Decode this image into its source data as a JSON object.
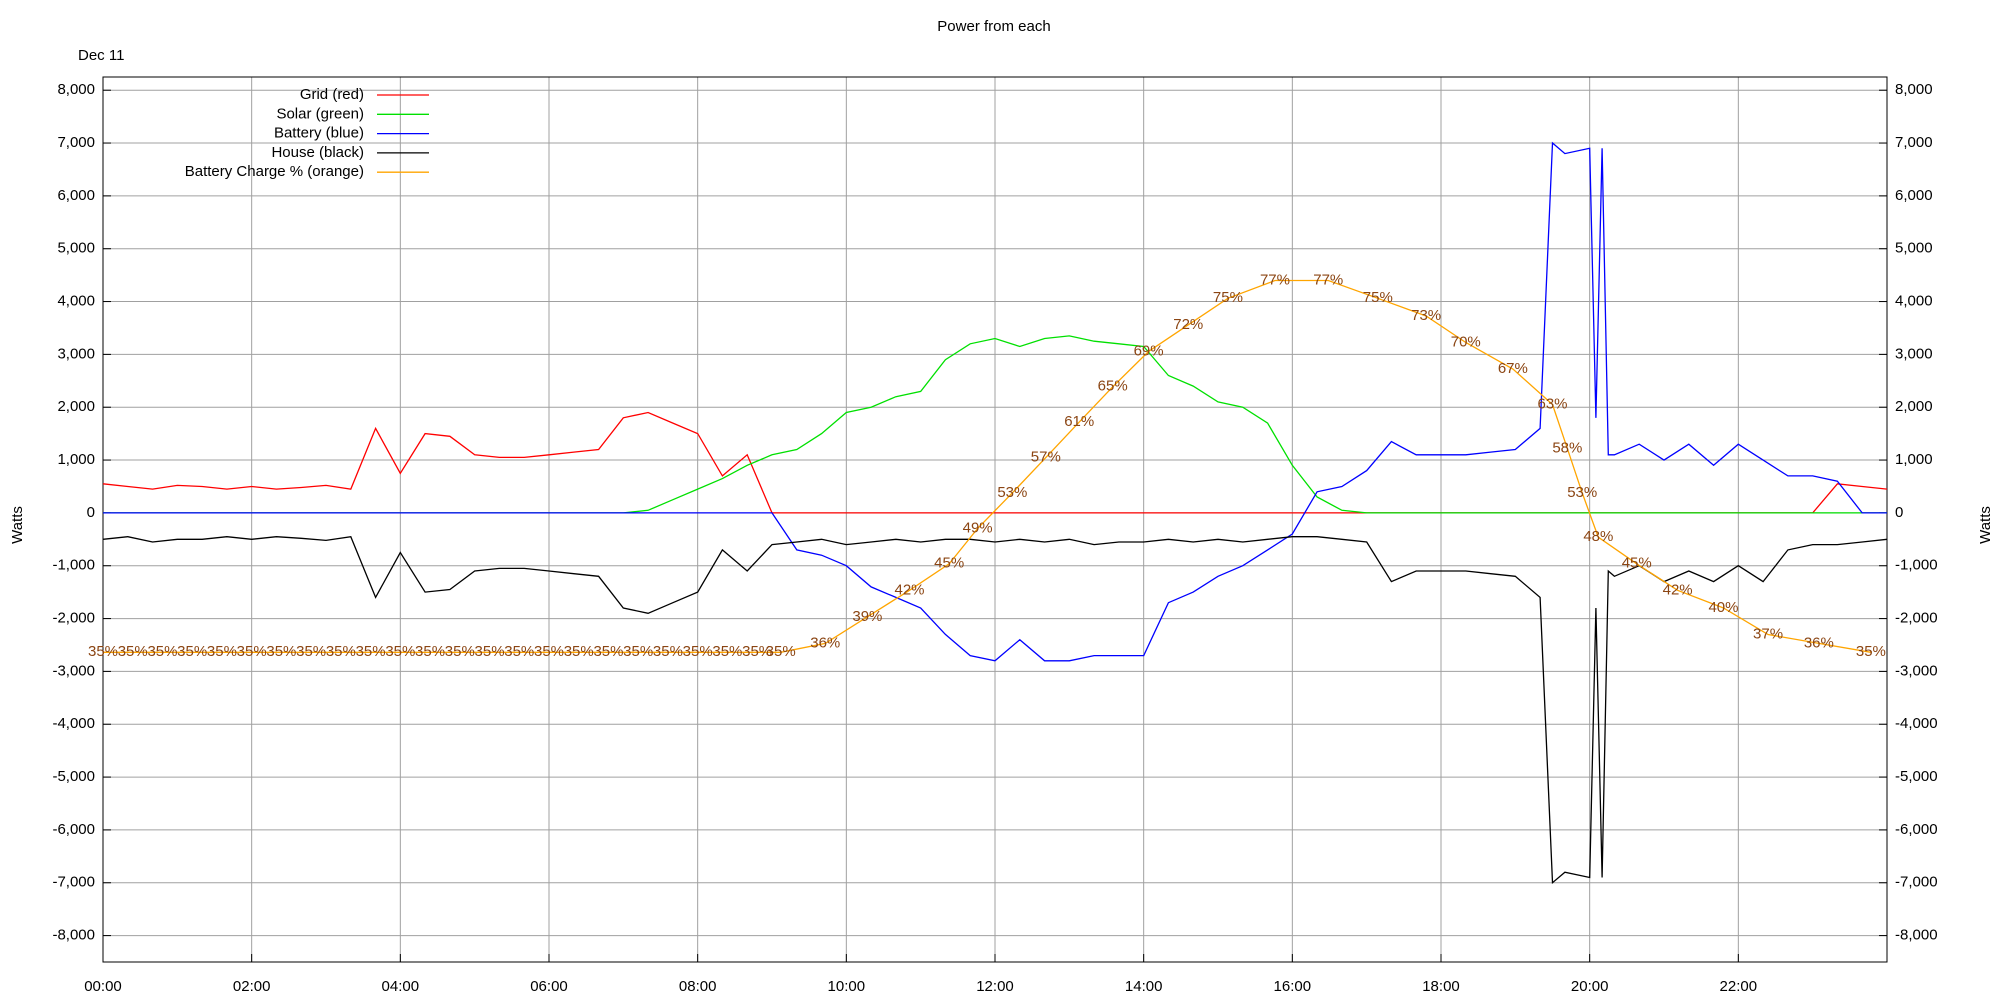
{
  "chart_data": {
    "type": "line",
    "title": "Power from each",
    "subtitle": "Dec 11",
    "ylabel": "Watts",
    "y2label": "Watts",
    "x": [
      "00:00",
      "00:20",
      "00:40",
      "01:00",
      "01:20",
      "01:40",
      "02:00",
      "02:20",
      "02:40",
      "03:00",
      "03:20",
      "03:40",
      "04:00",
      "04:20",
      "04:40",
      "05:00",
      "05:20",
      "05:40",
      "06:00",
      "06:20",
      "06:40",
      "07:00",
      "07:20",
      "07:40",
      "08:00",
      "08:20",
      "08:40",
      "09:00",
      "09:20",
      "09:40",
      "10:00",
      "10:20",
      "10:40",
      "11:00",
      "11:20",
      "11:40",
      "12:00",
      "12:20",
      "12:40",
      "13:00",
      "13:20",
      "13:40",
      "14:00",
      "14:20",
      "14:40",
      "15:00",
      "15:20",
      "15:40",
      "16:00",
      "16:20",
      "16:40",
      "17:00",
      "17:20",
      "17:40",
      "18:00",
      "18:20",
      "18:40",
      "19:00",
      "19:20",
      "19:30",
      "19:40",
      "20:00",
      "20:05",
      "20:10",
      "20:15",
      "20:20",
      "20:40",
      "21:00",
      "21:20",
      "21:40",
      "22:00",
      "22:20",
      "22:40",
      "23:00",
      "23:20",
      "23:40",
      "24:00"
    ],
    "xlim": [
      "00:00",
      "24:00"
    ],
    "xticks": [
      "00:00",
      "02:00",
      "04:00",
      "06:00",
      "08:00",
      "10:00",
      "12:00",
      "14:00",
      "16:00",
      "18:00",
      "20:00",
      "22:00"
    ],
    "ylim": [
      -8500,
      8250
    ],
    "yticks": [
      {
        "value": -8000,
        "label": "-8,000"
      },
      {
        "value": -7000,
        "label": "-7,000"
      },
      {
        "value": -6000,
        "label": "-6,000"
      },
      {
        "value": -5000,
        "label": "-5,000"
      },
      {
        "value": -4000,
        "label": "-4,000"
      },
      {
        "value": -3000,
        "label": "-3,000"
      },
      {
        "value": -2000,
        "label": "-2,000"
      },
      {
        "value": -1000,
        "label": "-1,000"
      },
      0,
      {
        "value": 1000,
        "label": "1,000"
      },
      {
        "value": 2000,
        "label": "2,000"
      },
      {
        "value": 3000,
        "label": "3,000"
      },
      {
        "value": 4000,
        "label": "4,000"
      },
      {
        "value": 5000,
        "label": "5,000"
      },
      {
        "value": 6000,
        "label": "6,000"
      },
      {
        "value": 7000,
        "label": "7,000"
      },
      {
        "value": 8000,
        "label": "8,000"
      }
    ],
    "y2lim": [
      -8500,
      8250
    ],
    "y2ticks": [
      {
        "value": -8000,
        "label": "-8,000"
      },
      {
        "value": -7000,
        "label": "-7,000"
      },
      {
        "value": -6000,
        "label": "-6,000"
      },
      {
        "value": -5000,
        "label": "-5,000"
      },
      {
        "value": -4000,
        "label": "-4,000"
      },
      {
        "value": -3000,
        "label": "-3,000"
      },
      {
        "value": -2000,
        "label": "-2,000"
      },
      {
        "value": -1000,
        "label": "-1,000"
      },
      0,
      {
        "value": 1000,
        "label": "1,000"
      },
      {
        "value": 2000,
        "label": "2,000"
      },
      {
        "value": 3000,
        "label": "3,000"
      },
      {
        "value": 4000,
        "label": "4,000"
      },
      {
        "value": 5000,
        "label": "5,000"
      },
      {
        "value": 6000,
        "label": "6,000"
      },
      {
        "value": 7000,
        "label": "7,000"
      },
      {
        "value": 8000,
        "label": "8,000"
      }
    ],
    "y3lim": [
      0,
      100
    ],
    "grid": true,
    "legend": "upper left",
    "series": [
      {
        "name": "Grid (red)",
        "color": "#ff0000",
        "values": [
          550,
          500,
          450,
          520,
          500,
          450,
          500,
          450,
          480,
          520,
          450,
          1600,
          750,
          1500,
          1450,
          1100,
          1050,
          1050,
          1100,
          1150,
          1200,
          1800,
          1900,
          1700,
          1500,
          700,
          1100,
          0,
          0,
          0,
          0,
          0,
          0,
          0,
          0,
          0,
          0,
          0,
          0,
          0,
          0,
          0,
          0,
          0,
          0,
          0,
          0,
          0,
          0,
          0,
          0,
          0,
          0,
          0,
          0,
          0,
          0,
          0,
          0,
          0,
          0,
          0,
          0,
          0,
          0,
          0,
          0,
          0,
          0,
          0,
          0,
          0,
          0,
          0,
          550,
          500,
          450
        ]
      },
      {
        "name": "Solar (green)",
        "color": "#00e000",
        "values": [
          0,
          0,
          0,
          0,
          0,
          0,
          0,
          0,
          0,
          0,
          0,
          0,
          0,
          0,
          0,
          0,
          0,
          0,
          0,
          0,
          0,
          0,
          50,
          250,
          450,
          650,
          900,
          1100,
          1200,
          1500,
          1900,
          2000,
          2200,
          2300,
          2900,
          3200,
          3300,
          3150,
          3300,
          3350,
          3250,
          3200,
          3150,
          2600,
          2400,
          2100,
          2000,
          1700,
          900,
          300,
          50,
          0,
          0,
          0,
          0,
          0,
          0,
          0,
          0,
          0,
          0,
          0,
          0,
          0,
          0,
          0,
          0,
          0,
          0,
          0,
          0,
          0,
          0,
          0,
          0,
          0,
          0
        ]
      },
      {
        "name": "Battery (blue)",
        "color": "#0000ff",
        "values": [
          0,
          0,
          0,
          0,
          0,
          0,
          0,
          0,
          0,
          0,
          0,
          0,
          0,
          0,
          0,
          0,
          0,
          0,
          0,
          0,
          0,
          0,
          0,
          0,
          0,
          0,
          0,
          0,
          -700,
          -800,
          -1000,
          -1400,
          -1600,
          -1800,
          -2300,
          -2700,
          -2800,
          -2400,
          -2800,
          -2800,
          -2700,
          -2700,
          -2700,
          -1700,
          -1500,
          -1200,
          -1000,
          -700,
          -400,
          400,
          500,
          800,
          1350,
          1100,
          1100,
          1100,
          1150,
          1200,
          1600,
          7000,
          6800,
          6900,
          1800,
          6900,
          1100,
          1100,
          1300,
          1000,
          1300,
          900,
          1300,
          1000,
          700,
          700,
          600,
          0,
          0
        ]
      },
      {
        "name": "House (black)",
        "color": "#000000",
        "values": [
          -500,
          -450,
          -550,
          -500,
          -500,
          -450,
          -500,
          -450,
          -480,
          -520,
          -450,
          -1600,
          -750,
          -1500,
          -1450,
          -1100,
          -1050,
          -1050,
          -1100,
          -1150,
          -1200,
          -1800,
          -1900,
          -1700,
          -1500,
          -700,
          -1100,
          -600,
          -550,
          -500,
          -600,
          -550,
          -500,
          -550,
          -500,
          -500,
          -550,
          -500,
          -550,
          -500,
          -600,
          -550,
          -550,
          -500,
          -550,
          -500,
          -550,
          -500,
          -450,
          -450,
          -500,
          -550,
          -1300,
          -1100,
          -1100,
          -1100,
          -1150,
          -1200,
          -1600,
          -7000,
          -6800,
          -6900,
          -1800,
          -6900,
          -1100,
          -1200,
          -1000,
          -1300,
          -1100,
          -1300,
          -1000,
          -1300,
          -700,
          -600,
          -600,
          -550,
          -500
        ]
      },
      {
        "name": "Battery Charge % (orange)",
        "color": "#ffa500",
        "label_color": "#8b4513",
        "axis": "y3",
        "x": [
          "00:00",
          "00:24",
          "00:48",
          "01:12",
          "01:36",
          "02:00",
          "02:24",
          "02:48",
          "03:12",
          "03:36",
          "04:00",
          "04:24",
          "04:48",
          "05:12",
          "05:36",
          "06:00",
          "06:24",
          "06:48",
          "07:12",
          "07:36",
          "08:00",
          "08:24",
          "08:48",
          "09:07",
          "09:43",
          "10:17",
          "10:51",
          "11:23",
          "11:46",
          "12:14",
          "12:41",
          "13:08",
          "13:35",
          "14:04",
          "14:36",
          "15:08",
          "15:46",
          "16:29",
          "17:09",
          "17:48",
          "18:20",
          "18:58",
          "19:30",
          "19:42",
          "19:54",
          "20:07",
          "20:38",
          "21:11",
          "21:48",
          "22:24",
          "23:05",
          "23:47"
        ],
        "values": [
          35,
          35,
          35,
          35,
          35,
          35,
          35,
          35,
          35,
          35,
          35,
          35,
          35,
          35,
          35,
          35,
          35,
          35,
          35,
          35,
          35,
          35,
          35,
          35,
          36,
          39,
          42,
          45,
          49,
          53,
          57,
          61,
          65,
          69,
          72,
          75,
          77,
          77,
          75,
          73,
          70,
          67,
          63,
          58,
          53,
          48,
          45,
          42,
          40,
          37,
          36,
          35
        ],
        "value_labels": [
          "35%",
          "35%",
          "35%",
          "35%",
          "35%",
          "35%",
          "35%",
          "35%",
          "35%",
          "35%",
          "35%",
          "35%",
          "35%",
          "35%",
          "35%",
          "35%",
          "35%",
          "35%",
          "35%",
          "35%",
          "35%",
          "35%",
          "35%",
          "35%",
          "36%",
          "39%",
          "42%",
          "45%",
          "49%",
          "53%",
          "57%",
          "61%",
          "65%",
          "69%",
          "72%",
          "75%",
          "77%",
          "77%",
          "75%",
          "73%",
          "70%",
          "67%",
          "63%",
          "58%",
          "53%",
          "48%",
          "45%",
          "42%",
          "40%",
          "37%",
          "36%",
          "35%"
        ]
      }
    ]
  }
}
